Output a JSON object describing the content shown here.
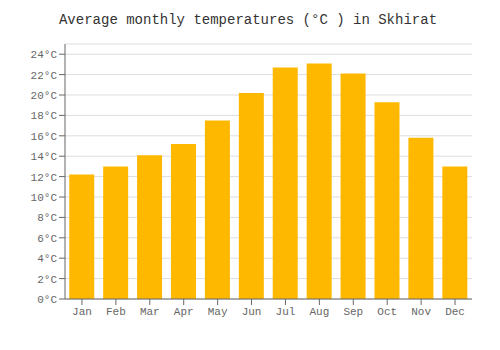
{
  "chart_data": {
    "type": "bar",
    "title": "Average monthly temperatures (°C ) in Skhirat",
    "categories": [
      "Jan",
      "Feb",
      "Mar",
      "Apr",
      "May",
      "Jun",
      "Jul",
      "Aug",
      "Sep",
      "Oct",
      "Nov",
      "Dec"
    ],
    "values": [
      12.2,
      13.0,
      14.1,
      15.2,
      17.5,
      20.2,
      22.7,
      23.1,
      22.1,
      19.3,
      15.8,
      13.0
    ],
    "color": "#FFB800",
    "ylim": [
      0,
      25
    ],
    "yticks": [
      {
        "value": 0,
        "label": "0°C"
      },
      {
        "value": 2,
        "label": "2°C"
      },
      {
        "value": 4,
        "label": "4°C"
      },
      {
        "value": 6,
        "label": "6°C"
      },
      {
        "value": 8,
        "label": "8°C"
      },
      {
        "value": 10,
        "label": "10°C"
      },
      {
        "value": 12,
        "label": "12°C"
      },
      {
        "value": 14,
        "label": "14°C"
      },
      {
        "value": 16,
        "label": "16°C"
      },
      {
        "value": 18,
        "label": "18°C"
      },
      {
        "value": 20,
        "label": "20°C"
      },
      {
        "value": 22,
        "label": "22°C"
      },
      {
        "value": 24,
        "label": "24°C"
      }
    ],
    "grid": true
  }
}
